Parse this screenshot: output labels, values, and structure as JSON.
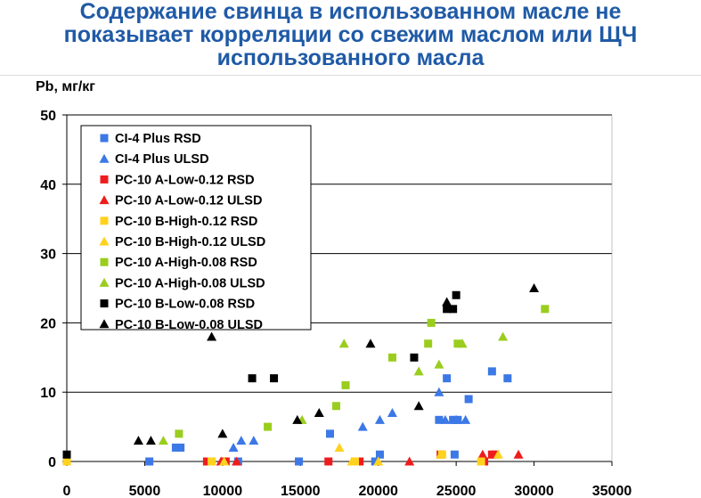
{
  "title": "Содержание свинца в использованном масле не показывает корреляции со свежим маслом или ЩЧ использованного масла",
  "title_lines": [
    "Содержание свинца в использованном масле не",
    "показывает корреляции со свежим маслом или ЩЧ",
    "использованного масла"
  ],
  "ylabel": "Pb, мг/кг",
  "colors": {
    "title": "#1f5aa6",
    "blue": "#3c78e6",
    "red": "#ee1c1c",
    "yellow": "#ffd21e",
    "green": "#9acd1e",
    "black": "#000000"
  },
  "chart_data": {
    "type": "scatter",
    "title": "Содержание свинца в использованном масле не показывает корреляции со свежим маслом или ЩЧ использованного масла",
    "xlabel": "",
    "ylabel": "Pb, мг/кг",
    "xlim": [
      0,
      35000
    ],
    "ylim": [
      0,
      50
    ],
    "xticks": [
      "0",
      "5000",
      "10000",
      "15000",
      "20000",
      "25000",
      "30000",
      "35000"
    ],
    "yticks": [
      "0",
      "10",
      "20",
      "30",
      "40",
      "50"
    ],
    "grid": "horizontal",
    "legend": "top-left",
    "series": [
      {
        "name": "CI-4 Plus RSD",
        "marker": "square",
        "color": "#3c78e6",
        "points": [
          [
            0,
            0
          ],
          [
            5300,
            0
          ],
          [
            7000,
            2
          ],
          [
            7300,
            2
          ],
          [
            11000,
            0
          ],
          [
            14900,
            0
          ],
          [
            16900,
            4
          ],
          [
            19800,
            0
          ],
          [
            20100,
            1
          ],
          [
            23900,
            6
          ],
          [
            24400,
            12
          ],
          [
            24800,
            6
          ],
          [
            24900,
            1
          ],
          [
            25100,
            6
          ],
          [
            25800,
            9
          ],
          [
            27300,
            13
          ],
          [
            28300,
            12
          ]
        ]
      },
      {
        "name": "CI-4 Plus ULSD",
        "marker": "triangle",
        "color": "#3c78e6",
        "points": [
          [
            10700,
            2
          ],
          [
            11200,
            3
          ],
          [
            12000,
            3
          ],
          [
            19000,
            5
          ],
          [
            20100,
            6
          ],
          [
            20900,
            7
          ],
          [
            23900,
            10
          ],
          [
            24300,
            6
          ],
          [
            25000,
            6
          ],
          [
            25600,
            6
          ]
        ]
      },
      {
        "name": "PC-10 A-Low-0.12 RSD",
        "marker": "square",
        "color": "#ee1c1c",
        "points": [
          [
            0,
            0
          ],
          [
            9000,
            0
          ],
          [
            10200,
            0
          ],
          [
            16800,
            0
          ],
          [
            18800,
            0
          ],
          [
            24000,
            1
          ],
          [
            26800,
            0
          ],
          [
            27300,
            1
          ],
          [
            27500,
            1
          ]
        ]
      },
      {
        "name": "PC-10 A-Low-0.12 ULSD",
        "marker": "triangle",
        "color": "#ee1c1c",
        "points": [
          [
            9900,
            0
          ],
          [
            10900,
            0
          ],
          [
            22000,
            0
          ],
          [
            26700,
            1
          ],
          [
            29000,
            1
          ]
        ]
      },
      {
        "name": "PC-10 B-High-0.12 RSD",
        "marker": "square",
        "color": "#ffd21e",
        "points": [
          [
            0,
            0
          ],
          [
            9300,
            0
          ],
          [
            18500,
            0
          ],
          [
            24100,
            1
          ],
          [
            26600,
            0
          ]
        ]
      },
      {
        "name": "PC-10 B-High-0.12 ULSD",
        "marker": "triangle",
        "color": "#ffd21e",
        "points": [
          [
            10100,
            0
          ],
          [
            17500,
            2
          ],
          [
            18300,
            0
          ],
          [
            20000,
            0
          ],
          [
            24000,
            1
          ],
          [
            27700,
            1
          ]
        ]
      },
      {
        "name": "PC-10 A-High-0.08 RSD",
        "marker": "square",
        "color": "#9acd1e",
        "points": [
          [
            7200,
            4
          ],
          [
            12900,
            5
          ],
          [
            17300,
            8
          ],
          [
            17900,
            11
          ],
          [
            20900,
            15
          ],
          [
            23200,
            17
          ],
          [
            23400,
            20
          ],
          [
            25100,
            17
          ],
          [
            30700,
            22
          ]
        ]
      },
      {
        "name": "PC-10 A-High-0.08 ULSD",
        "marker": "triangle",
        "color": "#9acd1e",
        "points": [
          [
            6200,
            3
          ],
          [
            15100,
            6
          ],
          [
            17800,
            17
          ],
          [
            22600,
            13
          ],
          [
            23900,
            14
          ],
          [
            25400,
            17
          ],
          [
            28000,
            18
          ]
        ]
      },
      {
        "name": "PC-10 B-Low-0.08 RSD",
        "marker": "square",
        "color": "#000000",
        "points": [
          [
            0,
            1
          ],
          [
            11900,
            12
          ],
          [
            13300,
            12
          ],
          [
            22300,
            15
          ],
          [
            24400,
            22
          ],
          [
            24800,
            22
          ],
          [
            25000,
            24
          ]
        ]
      },
      {
        "name": "PC-10 B-Low-0.08 ULSD",
        "marker": "triangle",
        "color": "#000000",
        "points": [
          [
            4600,
            3
          ],
          [
            5400,
            3
          ],
          [
            9300,
            18
          ],
          [
            10000,
            4
          ],
          [
            14800,
            6
          ],
          [
            16200,
            7
          ],
          [
            19500,
            17
          ],
          [
            22600,
            8
          ],
          [
            24400,
            23
          ],
          [
            30000,
            25
          ]
        ]
      }
    ]
  }
}
